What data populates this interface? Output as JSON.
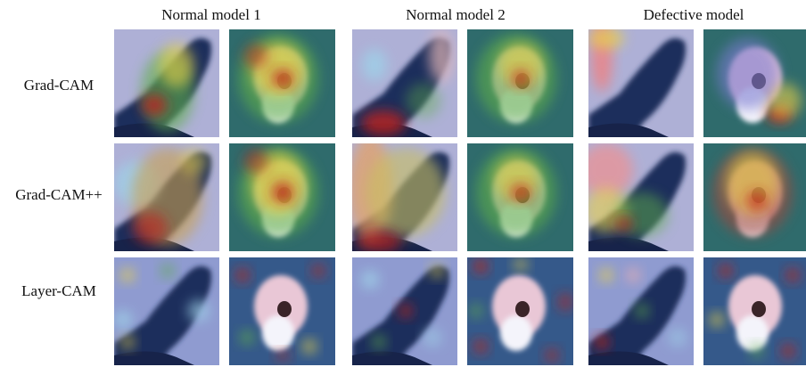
{
  "columns": [
    "Normal model 1",
    "Normal model 2",
    "Defective model"
  ],
  "rows": [
    "Grad-CAM",
    "Grad-CAM++",
    "Layer-CAM"
  ]
}
